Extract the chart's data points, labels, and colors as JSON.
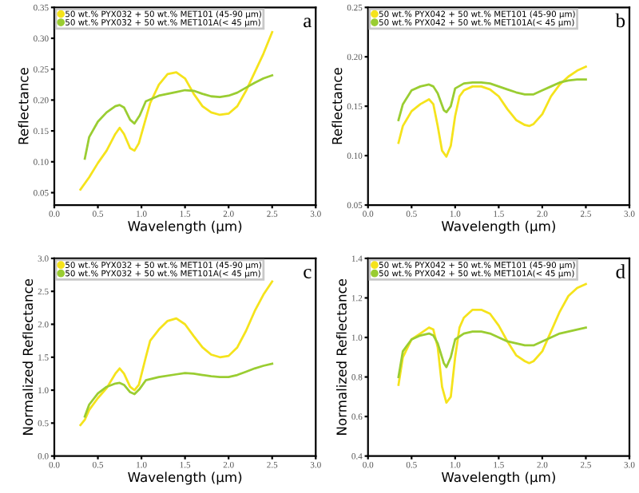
{
  "chart_data": [
    {
      "type": "line",
      "xlabel": "Wavelength (μm)",
      "ylabel": "Reflectance",
      "annotations": [
        "a"
      ],
      "legend": "top",
      "grid": false,
      "marker": "none",
      "line_style": "solid",
      "xlim": [
        0,
        3
      ],
      "xticks": [
        {
          "value": 0,
          "label": "0.0"
        },
        0.5,
        {
          "value": 1,
          "label": "1.0"
        },
        1.5,
        {
          "value": 2,
          "label": "2.0"
        },
        2.5,
        {
          "value": 3,
          "label": "3.0"
        }
      ],
      "ylim": [
        0.03,
        0.35
      ],
      "yticks": [
        0.05,
        {
          "value": 0.1,
          "label": "0.10"
        },
        0.15,
        {
          "value": 0.2,
          "label": "0.20"
        },
        0.25,
        {
          "value": 0.3,
          "label": "0.30"
        },
        0.35
      ],
      "series": [
        {
          "name": "50 wt.% PYX032 + 50 wt.% MET101 (45-90 μm)",
          "color": "#f5e31c",
          "x": [
            0.3,
            0.4,
            0.5,
            0.6,
            0.7,
            0.75,
            0.8,
            0.87,
            0.92,
            0.97,
            1.05,
            1.1,
            1.2,
            1.3,
            1.4,
            1.5,
            1.6,
            1.7,
            1.8,
            1.9,
            2.0,
            2.1,
            2.2,
            2.3,
            2.4,
            2.5
          ],
          "values": [
            0.055,
            0.075,
            0.098,
            0.118,
            0.145,
            0.155,
            0.145,
            0.122,
            0.118,
            0.13,
            0.17,
            0.195,
            0.225,
            0.242,
            0.245,
            0.235,
            0.21,
            0.19,
            0.18,
            0.176,
            0.178,
            0.19,
            0.215,
            0.245,
            0.275,
            0.31
          ]
        },
        {
          "name": "50 wt.% PYX032 + 50 wt.% MET101A(< 45 μm)",
          "color": "#9acd32",
          "x": [
            0.35,
            0.4,
            0.5,
            0.6,
            0.7,
            0.75,
            0.8,
            0.87,
            0.92,
            0.98,
            1.05,
            1.2,
            1.4,
            1.5,
            1.6,
            1.7,
            1.8,
            1.9,
            2.0,
            2.1,
            2.2,
            2.3,
            2.4,
            2.5
          ],
          "values": [
            0.105,
            0.14,
            0.165,
            0.18,
            0.19,
            0.192,
            0.188,
            0.168,
            0.162,
            0.175,
            0.198,
            0.207,
            0.213,
            0.216,
            0.215,
            0.21,
            0.206,
            0.205,
            0.207,
            0.212,
            0.22,
            0.228,
            0.235,
            0.24
          ]
        }
      ]
    },
    {
      "type": "line",
      "xlabel": "Wavelength (μm)",
      "ylabel": "Reflectance",
      "annotations": [
        "b"
      ],
      "legend": "top",
      "grid": false,
      "marker": "none",
      "line_style": "solid",
      "xlim": [
        0,
        3
      ],
      "xticks": [
        {
          "value": 0,
          "label": "0.0"
        },
        0.5,
        {
          "value": 1,
          "label": "1.0"
        },
        1.5,
        {
          "value": 2,
          "label": "2.0"
        },
        2.5,
        {
          "value": 3,
          "label": "3.0"
        }
      ],
      "ylim": [
        0.05,
        0.25
      ],
      "yticks": [
        0.05,
        {
          "value": 0.1,
          "label": "0.10"
        },
        0.15,
        {
          "value": 0.2,
          "label": "0.20"
        },
        0.25
      ],
      "series": [
        {
          "name": "50 wt.% PYX042 + 50 wt.% MET101 (45-90 μm)",
          "color": "#f5e31c",
          "x": [
            0.35,
            0.4,
            0.5,
            0.6,
            0.7,
            0.75,
            0.8,
            0.85,
            0.9,
            0.95,
            1.0,
            1.05,
            1.1,
            1.2,
            1.3,
            1.4,
            1.5,
            1.6,
            1.7,
            1.8,
            1.85,
            1.9,
            2.0,
            2.1,
            2.2,
            2.3,
            2.4,
            2.5
          ],
          "values": [
            0.113,
            0.13,
            0.145,
            0.152,
            0.157,
            0.152,
            0.13,
            0.105,
            0.099,
            0.11,
            0.14,
            0.16,
            0.166,
            0.17,
            0.17,
            0.167,
            0.16,
            0.147,
            0.136,
            0.131,
            0.13,
            0.132,
            0.142,
            0.16,
            0.172,
            0.18,
            0.186,
            0.19
          ]
        },
        {
          "name": "50 wt.% PYX042 + 50 wt.% MET101A(< 45 μm)",
          "color": "#9acd32",
          "x": [
            0.35,
            0.4,
            0.5,
            0.6,
            0.7,
            0.75,
            0.8,
            0.87,
            0.9,
            0.95,
            1.0,
            1.1,
            1.2,
            1.3,
            1.4,
            1.5,
            1.6,
            1.7,
            1.8,
            1.9,
            2.0,
            2.1,
            2.2,
            2.3,
            2.4,
            2.5
          ],
          "values": [
            0.136,
            0.152,
            0.166,
            0.17,
            0.172,
            0.17,
            0.163,
            0.146,
            0.144,
            0.15,
            0.168,
            0.173,
            0.174,
            0.174,
            0.173,
            0.17,
            0.167,
            0.164,
            0.162,
            0.162,
            0.166,
            0.17,
            0.174,
            0.176,
            0.177,
            0.177
          ]
        }
      ]
    },
    {
      "type": "line",
      "xlabel": "Wavelength (μm)",
      "ylabel": "Normalized Reflectance",
      "annotations": [
        "c"
      ],
      "legend": "top",
      "grid": false,
      "marker": "none",
      "line_style": "solid",
      "xlim": [
        0,
        3
      ],
      "xticks": [
        {
          "value": 0,
          "label": "0.0"
        },
        0.5,
        {
          "value": 1,
          "label": "1.0"
        },
        1.5,
        {
          "value": 2,
          "label": "2.0"
        },
        2.5,
        {
          "value": 3,
          "label": "3.0"
        }
      ],
      "ylim": [
        0,
        3
      ],
      "yticks": [
        {
          "value": 0,
          "label": "0.0"
        },
        0.5,
        {
          "value": 1,
          "label": "1.0"
        },
        1.5,
        {
          "value": 2,
          "label": "2.0"
        },
        2.5,
        {
          "value": 3,
          "label": "3.0"
        }
      ],
      "series": [
        {
          "name": "50 wt.% PYX032 + 50 wt.% MET101 (45-90 μm)",
          "color": "#f5e31c",
          "x": [
            0.3,
            0.35,
            0.4,
            0.5,
            0.6,
            0.7,
            0.75,
            0.8,
            0.87,
            0.92,
            0.97,
            1.05,
            1.1,
            1.2,
            1.3,
            1.4,
            1.5,
            1.6,
            1.7,
            1.8,
            1.9,
            2.0,
            2.1,
            2.2,
            2.3,
            2.4,
            2.5
          ],
          "values": [
            0.47,
            0.55,
            0.7,
            0.88,
            1.03,
            1.25,
            1.33,
            1.25,
            1.05,
            1.0,
            1.08,
            1.5,
            1.75,
            1.92,
            2.05,
            2.09,
            2.0,
            1.82,
            1.65,
            1.54,
            1.5,
            1.52,
            1.65,
            1.9,
            2.2,
            2.45,
            2.65
          ]
        },
        {
          "name": "50 wt.% PYX032 + 50 wt.% MET101A(< 45 μm)",
          "color": "#9acd32",
          "x": [
            0.35,
            0.4,
            0.5,
            0.6,
            0.7,
            0.75,
            0.8,
            0.87,
            0.92,
            0.98,
            1.05,
            1.2,
            1.4,
            1.5,
            1.6,
            1.7,
            1.8,
            1.9,
            2.0,
            2.1,
            2.2,
            2.3,
            2.4,
            2.5
          ],
          "values": [
            0.6,
            0.78,
            0.95,
            1.05,
            1.1,
            1.11,
            1.08,
            0.97,
            0.94,
            1.02,
            1.15,
            1.2,
            1.24,
            1.26,
            1.25,
            1.23,
            1.21,
            1.2,
            1.2,
            1.23,
            1.28,
            1.33,
            1.37,
            1.4
          ]
        }
      ]
    },
    {
      "type": "line",
      "xlabel": "Wavelength (μm)",
      "ylabel": "Normalized Reflectance",
      "annotations": [
        "d"
      ],
      "legend": "top",
      "grid": false,
      "marker": "none",
      "line_style": "solid",
      "xlim": [
        0,
        3
      ],
      "xticks": [
        {
          "value": 0,
          "label": "0.0"
        },
        0.5,
        {
          "value": 1,
          "label": "1.0"
        },
        1.5,
        {
          "value": 2,
          "label": "2.0"
        },
        2.5,
        {
          "value": 3,
          "label": "3.0"
        }
      ],
      "ylim": [
        0.4,
        1.4
      ],
      "yticks": [
        0.4,
        0.6,
        0.8,
        {
          "value": 1,
          "label": "1.0"
        },
        1.2,
        1.4
      ],
      "series": [
        {
          "name": "50 wt.% PYX042 + 50 wt.% MET101 (45-90 μm)",
          "color": "#f5e31c",
          "x": [
            0.35,
            0.4,
            0.5,
            0.6,
            0.7,
            0.75,
            0.8,
            0.85,
            0.9,
            0.95,
            1.0,
            1.05,
            1.1,
            1.2,
            1.3,
            1.4,
            1.5,
            1.6,
            1.7,
            1.8,
            1.85,
            1.9,
            2.0,
            2.1,
            2.2,
            2.3,
            2.4,
            2.5
          ],
          "values": [
            0.76,
            0.9,
            0.99,
            1.02,
            1.05,
            1.04,
            0.95,
            0.75,
            0.67,
            0.7,
            0.9,
            1.05,
            1.1,
            1.14,
            1.14,
            1.12,
            1.06,
            0.98,
            0.91,
            0.88,
            0.87,
            0.88,
            0.93,
            1.03,
            1.13,
            1.21,
            1.25,
            1.27
          ]
        },
        {
          "name": "50 wt.% PYX042 + 50 wt.% MET101A(< 45 μm)",
          "color": "#9acd32",
          "x": [
            0.35,
            0.4,
            0.5,
            0.6,
            0.7,
            0.75,
            0.8,
            0.87,
            0.9,
            0.95,
            1.0,
            1.1,
            1.2,
            1.3,
            1.4,
            1.5,
            1.6,
            1.7,
            1.8,
            1.9,
            2.0,
            2.1,
            2.2,
            2.3,
            2.4,
            2.5
          ],
          "values": [
            0.8,
            0.93,
            0.99,
            1.01,
            1.02,
            1.01,
            0.97,
            0.87,
            0.85,
            0.9,
            0.99,
            1.02,
            1.03,
            1.03,
            1.02,
            1.0,
            0.98,
            0.97,
            0.96,
            0.96,
            0.98,
            1.0,
            1.02,
            1.03,
            1.04,
            1.05
          ]
        }
      ]
    }
  ]
}
